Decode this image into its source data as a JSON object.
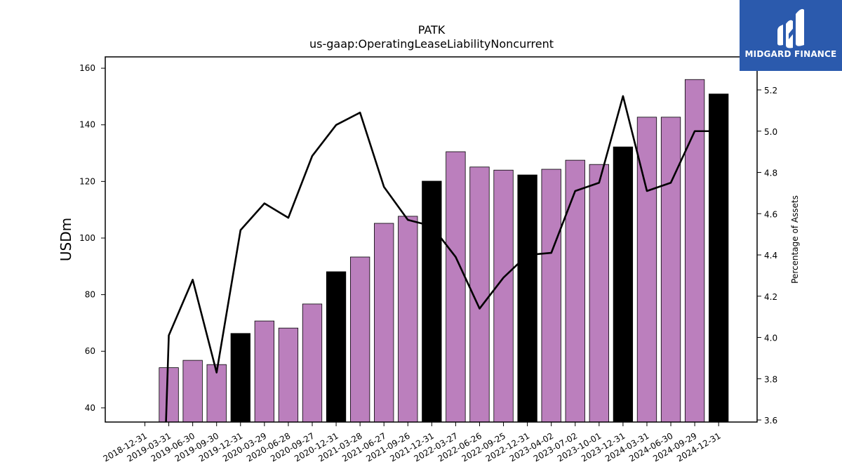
{
  "logo": {
    "brand": "MIDGARD FINANCE"
  },
  "chart_data": {
    "type": "bar",
    "title": "PATK",
    "subtitle": "us-gaap:OperatingLeaseLiabilityNoncurrent",
    "ylabel": "USDm",
    "y2label": "Percentage of Assets",
    "ylim": [
      35,
      164
    ],
    "y2lim": [
      3.59,
      5.36
    ],
    "yticks": [
      40,
      60,
      80,
      100,
      120,
      140,
      160
    ],
    "y2ticks": [
      3.6,
      3.8,
      4.0,
      4.2,
      4.4,
      4.6,
      4.8,
      5.0,
      5.2
    ],
    "categories": [
      "2018-12-31",
      "2019-03-31",
      "2019-06-30",
      "2019-09-30",
      "2019-12-31",
      "2020-03-29",
      "2020-06-28",
      "2020-09-27",
      "2020-12-31",
      "2021-03-28",
      "2021-06-27",
      "2021-09-26",
      "2021-12-31",
      "2022-03-27",
      "2022-06-26",
      "2022-09-25",
      "2022-12-31",
      "2023-04-02",
      "2023-07-02",
      "2023-10-01",
      "2023-12-31",
      "2024-03-31",
      "2024-06-30",
      "2024-09-29",
      "2024-12-31"
    ],
    "series": [
      {
        "type": "bar",
        "values": [
          null,
          54.2,
          56.8,
          55.3,
          66.3,
          70.7,
          68.2,
          76.7,
          88.1,
          93.3,
          105.2,
          107.7,
          120.1,
          130.5,
          125.1,
          124.0,
          122.3,
          124.3,
          127.5,
          126.0,
          132.2,
          142.7,
          142.7,
          156.0,
          150.9
        ],
        "year_end": [
          false,
          false,
          false,
          false,
          true,
          false,
          false,
          false,
          true,
          false,
          false,
          false,
          true,
          false,
          false,
          false,
          true,
          false,
          false,
          false,
          true,
          false,
          false,
          false,
          true
        ]
      },
      {
        "type": "line",
        "axis": "right",
        "values": [
          null,
          4.01,
          4.28,
          3.83,
          4.52,
          4.65,
          4.58,
          4.88,
          5.03,
          5.09,
          4.73,
          4.57,
          4.54,
          4.39,
          4.14,
          4.29,
          4.4,
          4.41,
          4.71,
          4.75,
          5.17,
          4.71,
          4.75,
          5.0,
          5.0
        ]
      }
    ],
    "colors": {
      "bar": "#bb7fbd",
      "bar_year_end": "#000000",
      "line": "#000000"
    }
  }
}
